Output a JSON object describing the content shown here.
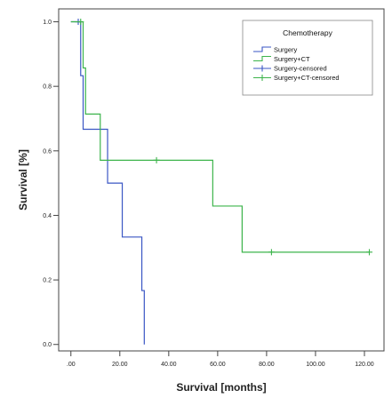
{
  "chart_data": {
    "type": "line",
    "subtype": "kaplan-meier-step",
    "xlabel": "Survival [months]",
    "ylabel": "Survival [%]",
    "xlim": [
      -5,
      128
    ],
    "ylim": [
      -0.02,
      1.04
    ],
    "x_ticks": [
      0,
      20,
      40,
      60,
      80,
      100,
      120
    ],
    "x_tick_labels": [
      ".00",
      "20.00",
      "40.00",
      "60.00",
      "80.00",
      "100.00",
      "120.00"
    ],
    "y_ticks": [
      0,
      0.2,
      0.4,
      0.6,
      0.8,
      1.0
    ],
    "y_tick_labels": [
      "0.0",
      "0.2",
      "0.4",
      "0.6",
      "0.8",
      "1.0"
    ],
    "grid": false,
    "legend": {
      "title": "Chemotherapy",
      "placement": "top-right",
      "entries": [
        {
          "label": "Surgery",
          "kind": "step",
          "color": "#3a56c4"
        },
        {
          "label": "Surgery+CT",
          "kind": "step",
          "color": "#3cb44b"
        },
        {
          "label": "Surgery-censored",
          "kind": "censor",
          "color": "#3a56c4"
        },
        {
          "label": "Surgery+CT-censored",
          "kind": "censor",
          "color": "#3cb44b"
        }
      ]
    },
    "series": [
      {
        "name": "Surgery",
        "color": "#3a56c4",
        "steps": [
          {
            "x": 0,
            "y": 1.0
          },
          {
            "x": 4,
            "y": 0.833
          },
          {
            "x": 5,
            "y": 0.667
          },
          {
            "x": 15,
            "y": 0.5
          },
          {
            "x": 21,
            "y": 0.333
          },
          {
            "x": 29,
            "y": 0.167
          },
          {
            "x": 30,
            "y": 0.0
          }
        ],
        "end_x": 30,
        "censored": [
          {
            "x": 3,
            "y": 1.0
          }
        ]
      },
      {
        "name": "Surgery+CT",
        "color": "#3cb44b",
        "steps": [
          {
            "x": 0,
            "y": 1.0
          },
          {
            "x": 5,
            "y": 0.857
          },
          {
            "x": 6,
            "y": 0.714
          },
          {
            "x": 12,
            "y": 0.571
          },
          {
            "x": 58,
            "y": 0.429
          },
          {
            "x": 70,
            "y": 0.286
          }
        ],
        "end_x": 122,
        "censored": [
          {
            "x": 4,
            "y": 1.0
          },
          {
            "x": 35,
            "y": 0.571
          },
          {
            "x": 82,
            "y": 0.286
          },
          {
            "x": 122,
            "y": 0.286
          }
        ]
      }
    ]
  }
}
